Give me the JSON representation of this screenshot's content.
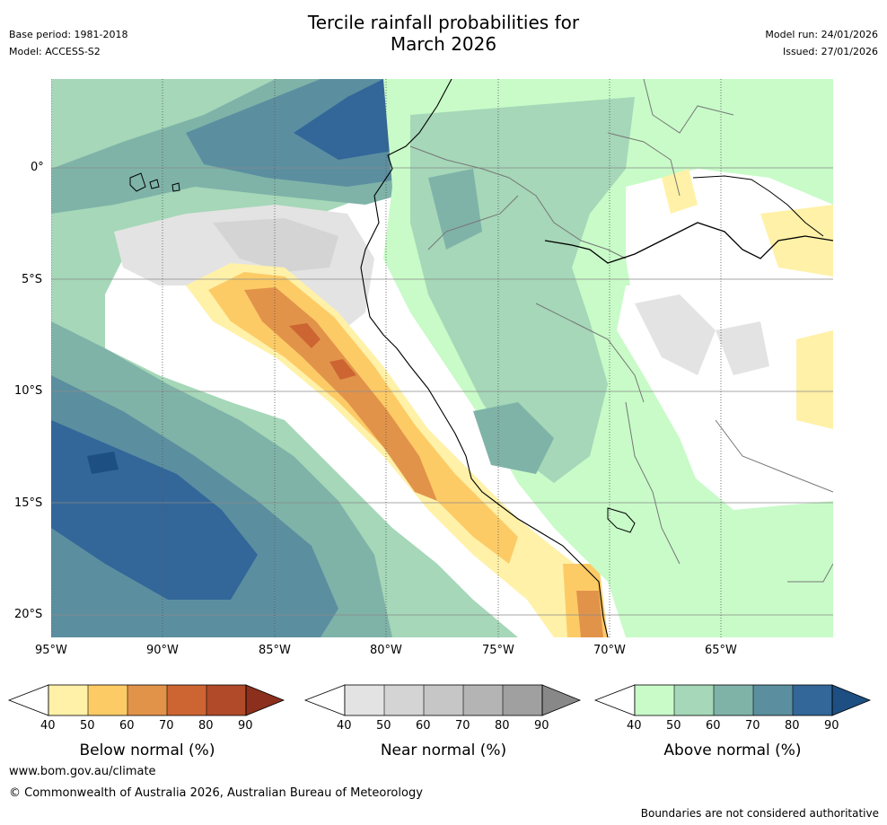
{
  "header": {
    "title_line1": "Tercile rainfall probabilities for",
    "title_line2": "March 2026",
    "base_period": "Base period: 1981-2018",
    "model": "Model: ACCESS-S2",
    "model_run": "Model run: 24/01/2026",
    "issued": "Issued: 27/01/2026"
  },
  "axes": {
    "lon_labels": [
      "95°W",
      "90°W",
      "85°W",
      "80°W",
      "75°W",
      "70°W",
      "65°W"
    ],
    "lat_labels": [
      "0°",
      "5°S",
      "10°S",
      "15°S",
      "20°S"
    ]
  },
  "legends": [
    {
      "title": "Below normal (%)",
      "ticks": [
        "40",
        "50",
        "60",
        "70",
        "80",
        "90"
      ],
      "colors": [
        "#fff1a8",
        "#fdcb66",
        "#e2934a",
        "#cd6532",
        "#b04a28",
        "#8c2f1c"
      ]
    },
    {
      "title": "Near normal (%)",
      "ticks": [
        "40",
        "50",
        "60",
        "70",
        "80",
        "90"
      ],
      "colors": [
        "#e3e3e3",
        "#d4d4d4",
        "#c6c6c6",
        "#b4b4b4",
        "#a0a0a0",
        "#888888"
      ]
    },
    {
      "title": "Above normal (%)",
      "ticks": [
        "40",
        "50",
        "60",
        "70",
        "80",
        "90"
      ],
      "colors": [
        "#c8fbc8",
        "#a5d7b8",
        "#7fb3a8",
        "#5b8fa0",
        "#336799",
        "#1d4f82"
      ]
    }
  ],
  "footer": {
    "url": "www.bom.gov.au/climate",
    "copyright": "© Commonwealth of Australia 2026, Australian Bureau of Meteorology",
    "disclaimer": "Boundaries are not considered authoritative"
  }
}
